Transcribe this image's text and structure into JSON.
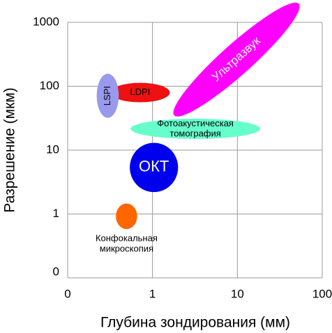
{
  "chart_data": {
    "type": "region",
    "x_label": "Глубина зондирования (мм)",
    "y_label": "Разрешение (мкм)",
    "xscale": "log",
    "yscale": "log",
    "grid": true,
    "xlim": [
      0.1,
      100
    ],
    "ylim": [
      0.1,
      1000
    ],
    "xticks": [
      {
        "value": 0.1,
        "label": "0"
      },
      1,
      10,
      100
    ],
    "yticks": [
      {
        "value": 0.1,
        "label": "0"
      },
      1,
      10,
      100,
      1000
    ],
    "regions": [
      {
        "label_lines": [
          "LDPI"
        ],
        "color": "#ee1111",
        "text_color": "#000000",
        "x": [
          0.32,
          1.6
        ],
        "y": [
          56,
          113
        ]
      },
      {
        "label_lines": [
          "LSPI"
        ],
        "color": "#9999ee",
        "text_color": "#000000",
        "x": [
          0.22,
          0.4
        ],
        "y": [
          32,
          157
        ],
        "label_rotation": -90
      },
      {
        "label_lines": [
          "Ультразвук"
        ],
        "color": "#ff00ff",
        "text_color": "#ffffff",
        "x": [
          1.8,
          53
        ],
        "y": [
          35,
          1950
        ],
        "shape": "diagonal"
      },
      {
        "label_lines": [
          "Фотоакустическая",
          "томография"
        ],
        "color": "#66ffcc",
        "text_color": "#000000",
        "x": [
          0.55,
          18.6
        ],
        "y": [
          15,
          31
        ]
      },
      {
        "label_lines": [
          "ОКТ"
        ],
        "color": "#0000ee",
        "text_color": "#ffffff",
        "x": [
          0.54,
          2.0
        ],
        "y": [
          2.2,
          13
        ]
      },
      {
        "label_lines": [
          "Конфокальная",
          "микроскопия"
        ],
        "color": "#ff6600",
        "text_color": "#000000",
        "x": [
          0.37,
          0.66
        ],
        "y": [
          0.58,
          1.46
        ],
        "label_position": "below"
      }
    ]
  }
}
